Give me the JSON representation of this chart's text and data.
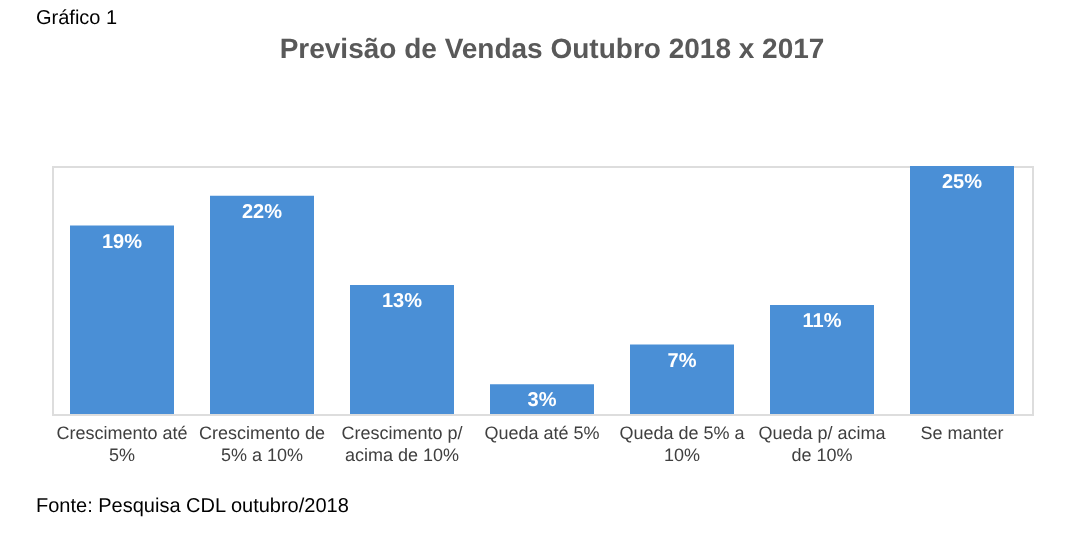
{
  "chart_data": {
    "type": "bar",
    "title": "Previsão de Vendas Outubro 2018 x 2017",
    "categories": [
      "Crescimento até 5%",
      "Crescimento de 5% a 10%",
      "Crescimento p/ acima de 10%",
      "Queda até 5%",
      "Queda de 5% a 10%",
      "Queda p/ acima de 10%",
      "Se manter"
    ],
    "values": [
      19,
      22,
      13,
      3,
      7,
      11,
      25
    ],
    "value_labels": [
      "19%",
      "22%",
      "13%",
      "3%",
      "7%",
      "11%",
      "25%"
    ],
    "color": "#4a8fd6",
    "grid": false,
    "tick_labels": "x",
    "annotations": [
      "Gráfico 1",
      "Fonte: Pesquisa CDL outubro/2018"
    ]
  }
}
